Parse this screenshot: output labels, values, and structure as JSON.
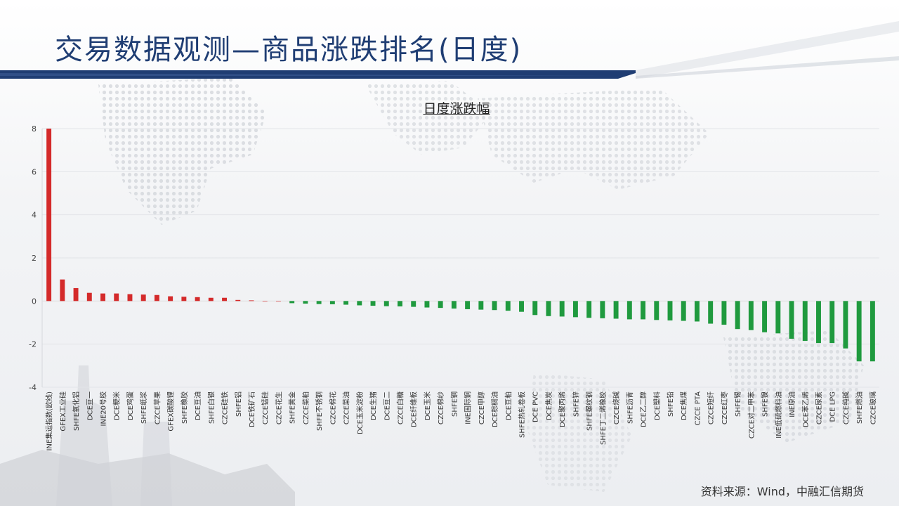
{
  "slide": {
    "title": "交易数据观测—商品涨跌排名(日度)",
    "source": "资料来源：Wind，中融汇信期货"
  },
  "colors": {
    "up": "#d42a2a",
    "down": "#1f9a3e",
    "title": "#1f3d73",
    "accent_bar": "#1f3d73"
  },
  "chart_data": {
    "type": "bar",
    "title": "日度涨跌幅",
    "xlabel": "",
    "ylabel": "",
    "ylim": [
      -4,
      8
    ],
    "yticks": [
      -4,
      -2,
      0,
      2,
      4,
      6,
      8
    ],
    "grid": true,
    "legend": "none",
    "categories": [
      "INE集运指数(欧线)",
      "GFEX工业硅",
      "SHFE氧化铝",
      "DCE豆一",
      "INE20号胶",
      "DCE粳米",
      "DCE鸡蛋",
      "SHFE纸浆",
      "CZCE苹果",
      "GFEX碳酸锂",
      "SHFE橡胶",
      "DCE豆油",
      "SHFE白银",
      "CZCE硅铁",
      "SHFE铝",
      "DCE铁矿石",
      "CZCE锰硅",
      "CZCE花生",
      "SHFE黄金",
      "CZCE菜粕",
      "SHFE不锈钢",
      "CZCE棉花",
      "CZCE菜油",
      "DCE玉米淀粉",
      "DCE生猪",
      "DCE豆二",
      "CZCE白糖",
      "DCE纤维板",
      "DCE玉米",
      "CZCE棉纱",
      "SHFE铜",
      "INE国际铜",
      "CZCE甲醇",
      "DCE棕榈油",
      "DCE豆粕",
      "SHFE热轧卷板",
      "DCE PVC",
      "DCE焦炭",
      "DCE聚丙烯",
      "SHFE锌",
      "SHFE螺纹钢",
      "SHFE丁二烯橡胶",
      "CZCE烧碱",
      "SHFE沥青",
      "DCE乙二醇",
      "DCE塑料",
      "SHFE铅",
      "DCE焦煤",
      "CZCE PTA",
      "CZCE短纤",
      "CZCE红枣",
      "SHFE锡",
      "CZCE对二甲苯",
      "SHFE镍",
      "INE低硫燃料油",
      "INE原油",
      "DCE苯乙烯",
      "CZCE尿素",
      "DCE LPG",
      "CZCE纯碱",
      "SHFE燃油",
      "CZCE玻璃"
    ],
    "values": [
      8.0,
      1.0,
      0.6,
      0.38,
      0.35,
      0.35,
      0.32,
      0.3,
      0.28,
      0.22,
      0.2,
      0.18,
      0.15,
      0.15,
      0.05,
      0.03,
      0.0,
      0.0,
      -0.1,
      -0.12,
      -0.14,
      -0.15,
      -0.17,
      -0.2,
      -0.22,
      -0.24,
      -0.25,
      -0.27,
      -0.3,
      -0.32,
      -0.35,
      -0.38,
      -0.4,
      -0.42,
      -0.45,
      -0.5,
      -0.65,
      -0.7,
      -0.72,
      -0.75,
      -0.78,
      -0.8,
      -0.82,
      -0.85,
      -0.85,
      -0.88,
      -0.9,
      -0.92,
      -0.95,
      -1.05,
      -1.1,
      -1.3,
      -1.35,
      -1.45,
      -1.5,
      -1.75,
      -1.85,
      -1.95,
      -1.95,
      -2.2,
      -2.8,
      -2.8
    ]
  }
}
